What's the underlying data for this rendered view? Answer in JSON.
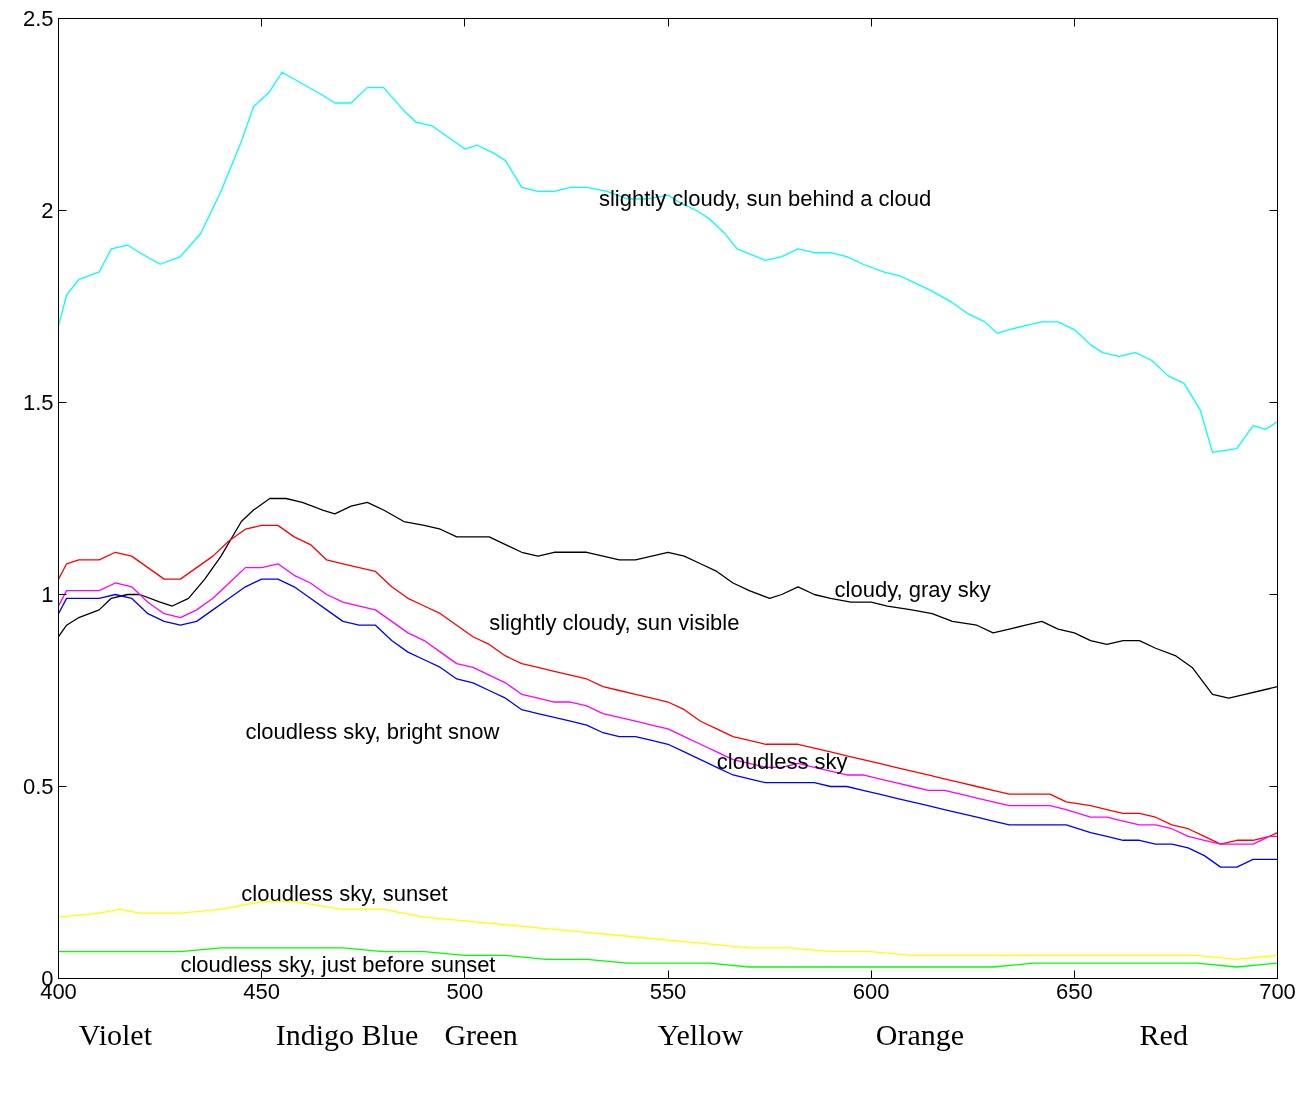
{
  "chart_data": {
    "type": "line",
    "xlim": [
      400,
      700
    ],
    "ylim": [
      0,
      2.5
    ],
    "xticks": [
      400,
      450,
      500,
      550,
      600,
      650,
      700
    ],
    "yticks": [
      0,
      0.5,
      1,
      1.5,
      2,
      2.5
    ],
    "grid": false,
    "marker": "none",
    "line_style": "solid",
    "annotations": [
      "Violet",
      "Indigo Blue",
      "Green",
      "Yellow",
      "Orange",
      "Red"
    ],
    "series": [
      {
        "name": "slightly cloudy, sun behind a cloud",
        "color": "#00ffff",
        "x": [
          400,
          402,
          405,
          410,
          413,
          417,
          420,
          425,
          430,
          435,
          440,
          445,
          448,
          452,
          455,
          460,
          465,
          468,
          472,
          476,
          480,
          485,
          488,
          492,
          496,
          500,
          503,
          507,
          510,
          514,
          518,
          522,
          526,
          530,
          535,
          540,
          545,
          550,
          553,
          557,
          560,
          564,
          567,
          574,
          578,
          582,
          586,
          590,
          594,
          598,
          603,
          607,
          611,
          615,
          620,
          624,
          628,
          631,
          634,
          638,
          642,
          646,
          650,
          654,
          657,
          661,
          665,
          669,
          673,
          677,
          681,
          684,
          690,
          694,
          697,
          700
        ],
        "values": [
          1.7,
          1.78,
          1.82,
          1.84,
          1.9,
          1.91,
          1.89,
          1.86,
          1.88,
          1.94,
          2.05,
          2.18,
          2.27,
          2.31,
          2.36,
          2.33,
          2.3,
          2.28,
          2.28,
          2.32,
          2.32,
          2.26,
          2.23,
          2.22,
          2.19,
          2.16,
          2.17,
          2.15,
          2.13,
          2.06,
          2.05,
          2.05,
          2.06,
          2.06,
          2.05,
          2.03,
          2.03,
          2.04,
          2.02,
          2.0,
          1.98,
          1.94,
          1.9,
          1.87,
          1.88,
          1.9,
          1.89,
          1.89,
          1.88,
          1.86,
          1.84,
          1.83,
          1.81,
          1.79,
          1.76,
          1.73,
          1.71,
          1.68,
          1.69,
          1.7,
          1.71,
          1.71,
          1.69,
          1.65,
          1.63,
          1.62,
          1.63,
          1.61,
          1.57,
          1.55,
          1.48,
          1.37,
          1.38,
          1.44,
          1.43,
          1.45
        ]
      },
      {
        "name": "cloudy, gray sky",
        "color": "#000000",
        "x": [
          400,
          402,
          405,
          410,
          413,
          417,
          420,
          425,
          428,
          432,
          436,
          440,
          445,
          448,
          452,
          456,
          460,
          465,
          468,
          472,
          476,
          480,
          485,
          490,
          494,
          498,
          502,
          506,
          510,
          514,
          518,
          522,
          530,
          534,
          538,
          542,
          546,
          550,
          554,
          558,
          562,
          566,
          570,
          575,
          578,
          582,
          586,
          590,
          595,
          600,
          604,
          610,
          615,
          620,
          626,
          630,
          634,
          638,
          642,
          646,
          650,
          654,
          658,
          662,
          666,
          670,
          675,
          679,
          684,
          688,
          692,
          696,
          700
        ],
        "values": [
          0.89,
          0.92,
          0.94,
          0.96,
          0.99,
          1.0,
          1.0,
          0.98,
          0.97,
          0.99,
          1.04,
          1.1,
          1.19,
          1.22,
          1.25,
          1.25,
          1.24,
          1.22,
          1.21,
          1.23,
          1.24,
          1.22,
          1.19,
          1.18,
          1.17,
          1.15,
          1.15,
          1.15,
          1.13,
          1.11,
          1.1,
          1.11,
          1.11,
          1.1,
          1.09,
          1.09,
          1.1,
          1.11,
          1.1,
          1.08,
          1.06,
          1.03,
          1.01,
          0.99,
          1.0,
          1.02,
          1.0,
          0.99,
          0.98,
          0.98,
          0.97,
          0.96,
          0.95,
          0.93,
          0.92,
          0.9,
          0.91,
          0.92,
          0.93,
          0.91,
          0.9,
          0.88,
          0.87,
          0.88,
          0.88,
          0.86,
          0.84,
          0.81,
          0.74,
          0.73,
          0.74,
          0.75,
          0.76
        ]
      },
      {
        "name": "slightly cloudy, sun visible",
        "color": "#ff0000",
        "x": [
          400,
          402,
          405,
          410,
          414,
          418,
          422,
          426,
          430,
          434,
          438,
          442,
          446,
          450,
          454,
          458,
          462,
          466,
          470,
          474,
          478,
          482,
          486,
          490,
          494,
          498,
          502,
          506,
          510,
          514,
          518,
          522,
          526,
          530,
          534,
          538,
          542,
          546,
          550,
          554,
          558,
          562,
          566,
          570,
          574,
          578,
          582,
          586,
          590,
          594,
          598,
          602,
          606,
          610,
          614,
          618,
          622,
          626,
          630,
          634,
          640,
          644,
          648,
          654,
          658,
          662,
          666,
          670,
          674,
          678,
          682,
          686,
          690,
          694,
          698,
          700
        ],
        "values": [
          1.04,
          1.08,
          1.09,
          1.09,
          1.11,
          1.1,
          1.07,
          1.04,
          1.04,
          1.07,
          1.1,
          1.14,
          1.17,
          1.18,
          1.18,
          1.15,
          1.13,
          1.09,
          1.08,
          1.07,
          1.06,
          1.02,
          0.99,
          0.97,
          0.95,
          0.92,
          0.89,
          0.87,
          0.84,
          0.82,
          0.81,
          0.8,
          0.79,
          0.78,
          0.76,
          0.75,
          0.74,
          0.73,
          0.72,
          0.7,
          0.67,
          0.65,
          0.63,
          0.62,
          0.61,
          0.61,
          0.61,
          0.6,
          0.59,
          0.58,
          0.57,
          0.56,
          0.55,
          0.54,
          0.53,
          0.52,
          0.51,
          0.5,
          0.49,
          0.48,
          0.48,
          0.48,
          0.46,
          0.45,
          0.44,
          0.43,
          0.43,
          0.42,
          0.4,
          0.39,
          0.37,
          0.35,
          0.36,
          0.36,
          0.37,
          0.38
        ]
      },
      {
        "name": "cloudless sky",
        "color": "#ff00ff",
        "x": [
          400,
          402,
          405,
          410,
          414,
          418,
          422,
          426,
          430,
          434,
          438,
          442,
          446,
          450,
          454,
          458,
          462,
          466,
          470,
          474,
          478,
          482,
          486,
          490,
          494,
          498,
          502,
          506,
          510,
          514,
          518,
          522,
          526,
          530,
          534,
          538,
          542,
          546,
          550,
          554,
          558,
          562,
          566,
          570,
          574,
          578,
          582,
          586,
          590,
          594,
          598,
          602,
          606,
          610,
          614,
          618,
          622,
          626,
          630,
          634,
          640,
          644,
          648,
          654,
          658,
          662,
          666,
          670,
          674,
          678,
          682,
          686,
          690,
          694,
          698,
          700
        ],
        "values": [
          0.97,
          1.01,
          1.01,
          1.01,
          1.03,
          1.02,
          0.98,
          0.95,
          0.94,
          0.96,
          0.99,
          1.03,
          1.07,
          1.07,
          1.08,
          1.05,
          1.03,
          1.0,
          0.98,
          0.97,
          0.96,
          0.93,
          0.9,
          0.88,
          0.85,
          0.82,
          0.81,
          0.79,
          0.77,
          0.74,
          0.73,
          0.72,
          0.72,
          0.71,
          0.69,
          0.68,
          0.67,
          0.66,
          0.65,
          0.63,
          0.61,
          0.59,
          0.57,
          0.56,
          0.55,
          0.55,
          0.56,
          0.55,
          0.54,
          0.53,
          0.53,
          0.52,
          0.51,
          0.5,
          0.49,
          0.49,
          0.48,
          0.47,
          0.46,
          0.45,
          0.45,
          0.45,
          0.44,
          0.42,
          0.42,
          0.41,
          0.4,
          0.4,
          0.39,
          0.37,
          0.36,
          0.35,
          0.35,
          0.35,
          0.37,
          0.37
        ]
      },
      {
        "name": "cloudless sky, bright snow",
        "color": "#0000ff",
        "x": [
          400,
          402,
          405,
          410,
          414,
          418,
          422,
          426,
          430,
          434,
          438,
          442,
          446,
          450,
          454,
          458,
          462,
          466,
          470,
          474,
          478,
          482,
          486,
          490,
          494,
          498,
          502,
          506,
          510,
          514,
          518,
          522,
          526,
          530,
          534,
          538,
          542,
          546,
          550,
          554,
          558,
          562,
          566,
          570,
          574,
          578,
          582,
          586,
          590,
          594,
          598,
          602,
          606,
          610,
          614,
          618,
          622,
          626,
          630,
          634,
          640,
          644,
          648,
          654,
          658,
          662,
          666,
          670,
          674,
          678,
          682,
          686,
          690,
          694,
          698,
          700
        ],
        "values": [
          0.95,
          0.99,
          0.99,
          0.99,
          1.0,
          0.99,
          0.95,
          0.93,
          0.92,
          0.93,
          0.96,
          0.99,
          1.02,
          1.04,
          1.04,
          1.02,
          0.99,
          0.96,
          0.93,
          0.92,
          0.92,
          0.88,
          0.85,
          0.83,
          0.81,
          0.78,
          0.77,
          0.75,
          0.73,
          0.7,
          0.69,
          0.68,
          0.67,
          0.66,
          0.64,
          0.63,
          0.63,
          0.62,
          0.61,
          0.59,
          0.57,
          0.55,
          0.53,
          0.52,
          0.51,
          0.51,
          0.51,
          0.51,
          0.5,
          0.5,
          0.49,
          0.48,
          0.47,
          0.46,
          0.45,
          0.44,
          0.43,
          0.42,
          0.41,
          0.4,
          0.4,
          0.4,
          0.4,
          0.38,
          0.37,
          0.36,
          0.36,
          0.35,
          0.35,
          0.34,
          0.32,
          0.29,
          0.29,
          0.31,
          0.31,
          0.31
        ]
      },
      {
        "name": "cloudless sky, sunset",
        "color": "#ffff00",
        "x": [
          400,
          410,
          415,
          420,
          430,
          440,
          450,
          458,
          470,
          480,
          490,
          500,
          510,
          520,
          530,
          540,
          550,
          560,
          570,
          580,
          590,
          600,
          610,
          620,
          630,
          640,
          650,
          660,
          670,
          680,
          690,
          700
        ],
        "values": [
          0.16,
          0.17,
          0.18,
          0.17,
          0.17,
          0.18,
          0.2,
          0.2,
          0.18,
          0.18,
          0.16,
          0.15,
          0.14,
          0.13,
          0.12,
          0.11,
          0.1,
          0.09,
          0.08,
          0.08,
          0.07,
          0.07,
          0.06,
          0.06,
          0.06,
          0.06,
          0.06,
          0.06,
          0.06,
          0.06,
          0.05,
          0.06
        ]
      },
      {
        "name": "cloudless sky, just before sunset",
        "color": "#00ff00",
        "x": [
          400,
          410,
          420,
          430,
          440,
          450,
          460,
          470,
          480,
          490,
          500,
          510,
          520,
          530,
          540,
          550,
          560,
          570,
          580,
          590,
          600,
          610,
          620,
          630,
          640,
          650,
          660,
          670,
          680,
          690,
          700
        ],
        "values": [
          0.07,
          0.07,
          0.07,
          0.07,
          0.08,
          0.08,
          0.08,
          0.08,
          0.07,
          0.07,
          0.06,
          0.06,
          0.05,
          0.05,
          0.04,
          0.04,
          0.04,
          0.03,
          0.03,
          0.03,
          0.03,
          0.03,
          0.03,
          0.03,
          0.04,
          0.04,
          0.04,
          0.04,
          0.04,
          0.03,
          0.04
        ]
      }
    ]
  }
}
